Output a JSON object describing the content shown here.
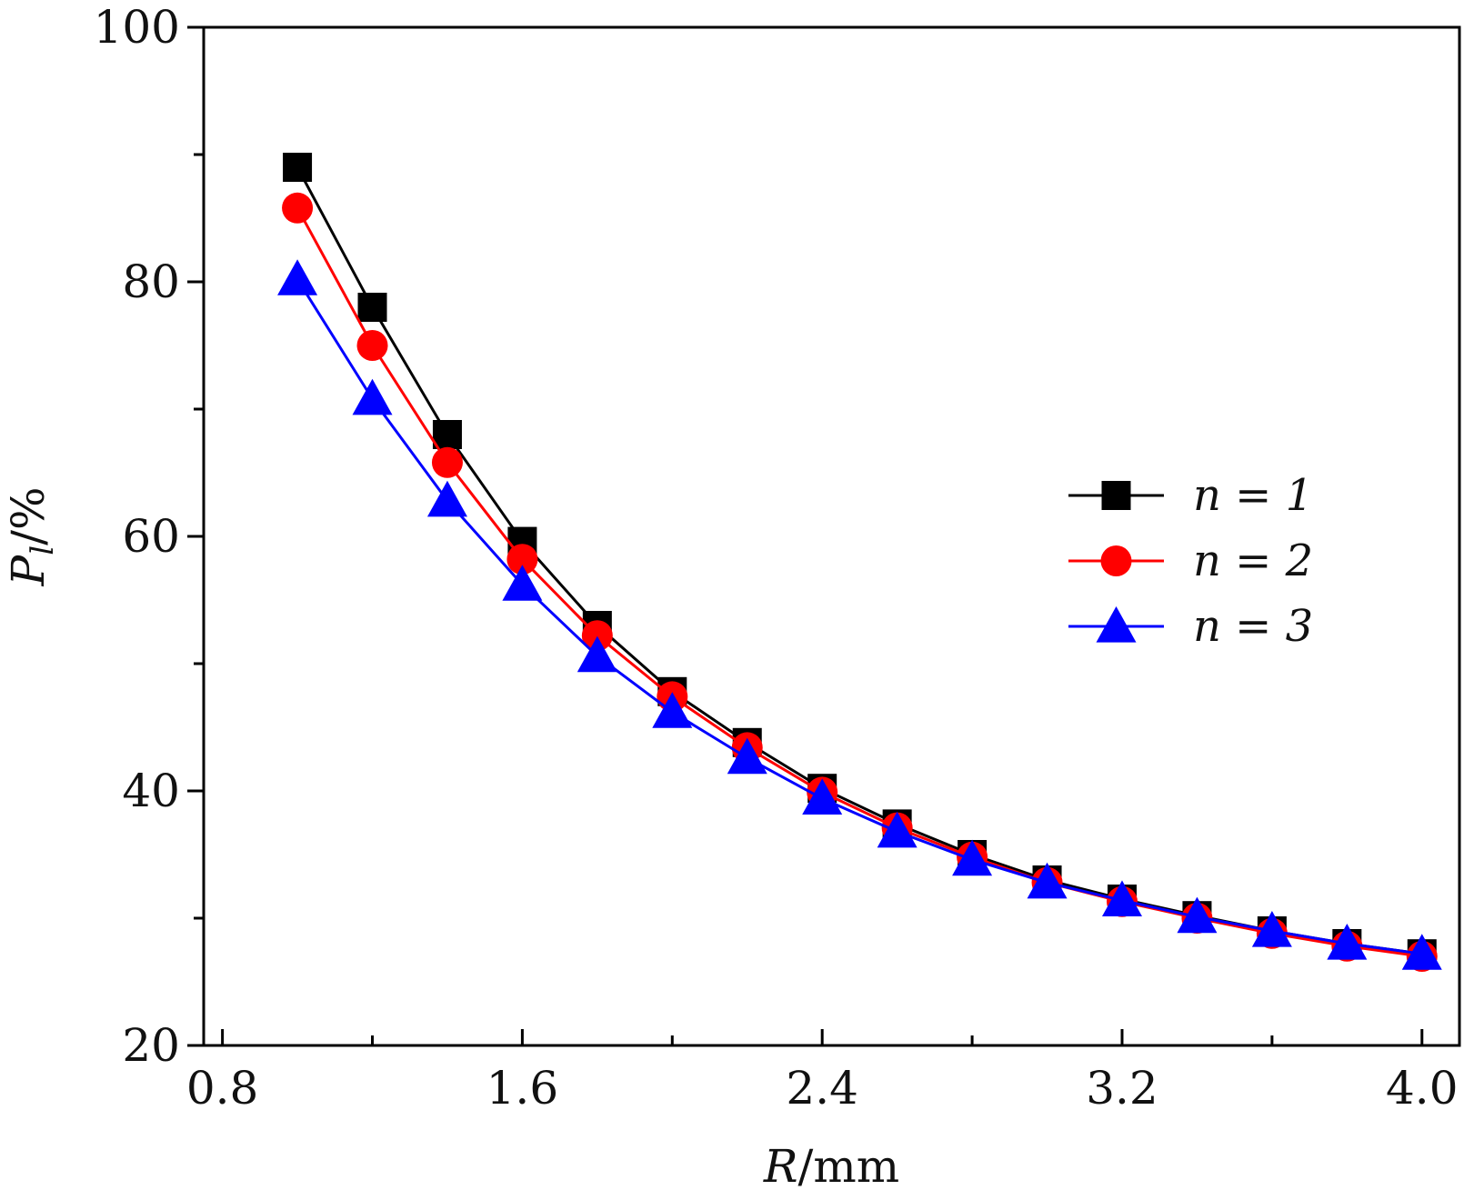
{
  "chart_data": {
    "type": "line",
    "xlabel": "R/mm",
    "ylabel": "P_l/%",
    "xlim": [
      0.75,
      4.1
    ],
    "ylim": [
      20,
      100
    ],
    "xticks_major": [
      0.8,
      1.6,
      2.4,
      3.2,
      4.0
    ],
    "xticks_minor": [
      1.2,
      2.0,
      2.8,
      3.6
    ],
    "xtick_labels": [
      "0.8",
      "1.6",
      "2.4",
      "3.2",
      "4.0"
    ],
    "yticks_major": [
      20,
      40,
      60,
      80,
      100
    ],
    "yticks_minor": [
      30,
      50,
      70,
      90
    ],
    "ytick_labels": [
      "20",
      "40",
      "60",
      "80",
      "100"
    ],
    "grid": false,
    "legend_position": "right-middle",
    "x": [
      1.0,
      1.2,
      1.4,
      1.6,
      1.8,
      2.0,
      2.2,
      2.4,
      2.6,
      2.8,
      3.0,
      3.2,
      3.4,
      3.6,
      3.8,
      4.0
    ],
    "series": [
      {
        "name": "n = 1",
        "color": "#000000",
        "marker": "square",
        "values": [
          89.0,
          78.0,
          68.0,
          59.6,
          53.0,
          47.8,
          43.8,
          40.2,
          37.4,
          35.0,
          33.0,
          31.5,
          30.2,
          29.0,
          28.0,
          27.2
        ]
      },
      {
        "name": "n = 2",
        "color": "#ff0000",
        "marker": "circle",
        "values": [
          85.8,
          75.0,
          65.8,
          58.2,
          52.2,
          47.4,
          43.4,
          39.9,
          37.1,
          34.8,
          32.8,
          31.3,
          30.0,
          28.8,
          27.8,
          27.0
        ]
      },
      {
        "name": "n = 3",
        "color": "#0000ff",
        "marker": "triangle",
        "values": [
          80.2,
          70.8,
          62.8,
          56.2,
          50.6,
          46.2,
          42.6,
          39.4,
          36.8,
          34.6,
          32.8,
          31.4,
          30.1,
          29.0,
          28.0,
          27.2
        ]
      }
    ]
  }
}
